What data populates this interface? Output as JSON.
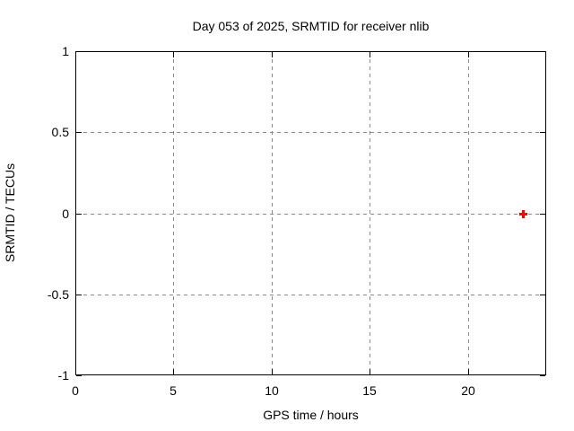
{
  "chart_data": {
    "type": "scatter",
    "title": "Day 053 of 2025, SRMTID for receiver nlib",
    "xlabel": "GPS time / hours",
    "ylabel": "SRMTID / TECUs",
    "xlim": [
      0,
      24
    ],
    "ylim": [
      -1,
      1
    ],
    "x_ticks": [
      0,
      5,
      10,
      15,
      20
    ],
    "x_tick_labels": [
      "0",
      "5",
      "10",
      "15",
      "20"
    ],
    "y_ticks": [
      -1,
      -0.5,
      0,
      0.5,
      1
    ],
    "y_tick_labels": [
      "-1",
      "-0.5",
      "0",
      "0.5",
      "1"
    ],
    "grid": true,
    "legend": "none",
    "series": [
      {
        "name": "SRMTID",
        "marker": "plus",
        "color": "#ff0000",
        "points": [
          {
            "x": 22.8,
            "y": 0.0
          }
        ]
      }
    ]
  },
  "colors": {
    "background": "#ffffff",
    "axis": "#000000",
    "grid": "#888888",
    "text": "#000000",
    "marker": "#ff0000"
  }
}
